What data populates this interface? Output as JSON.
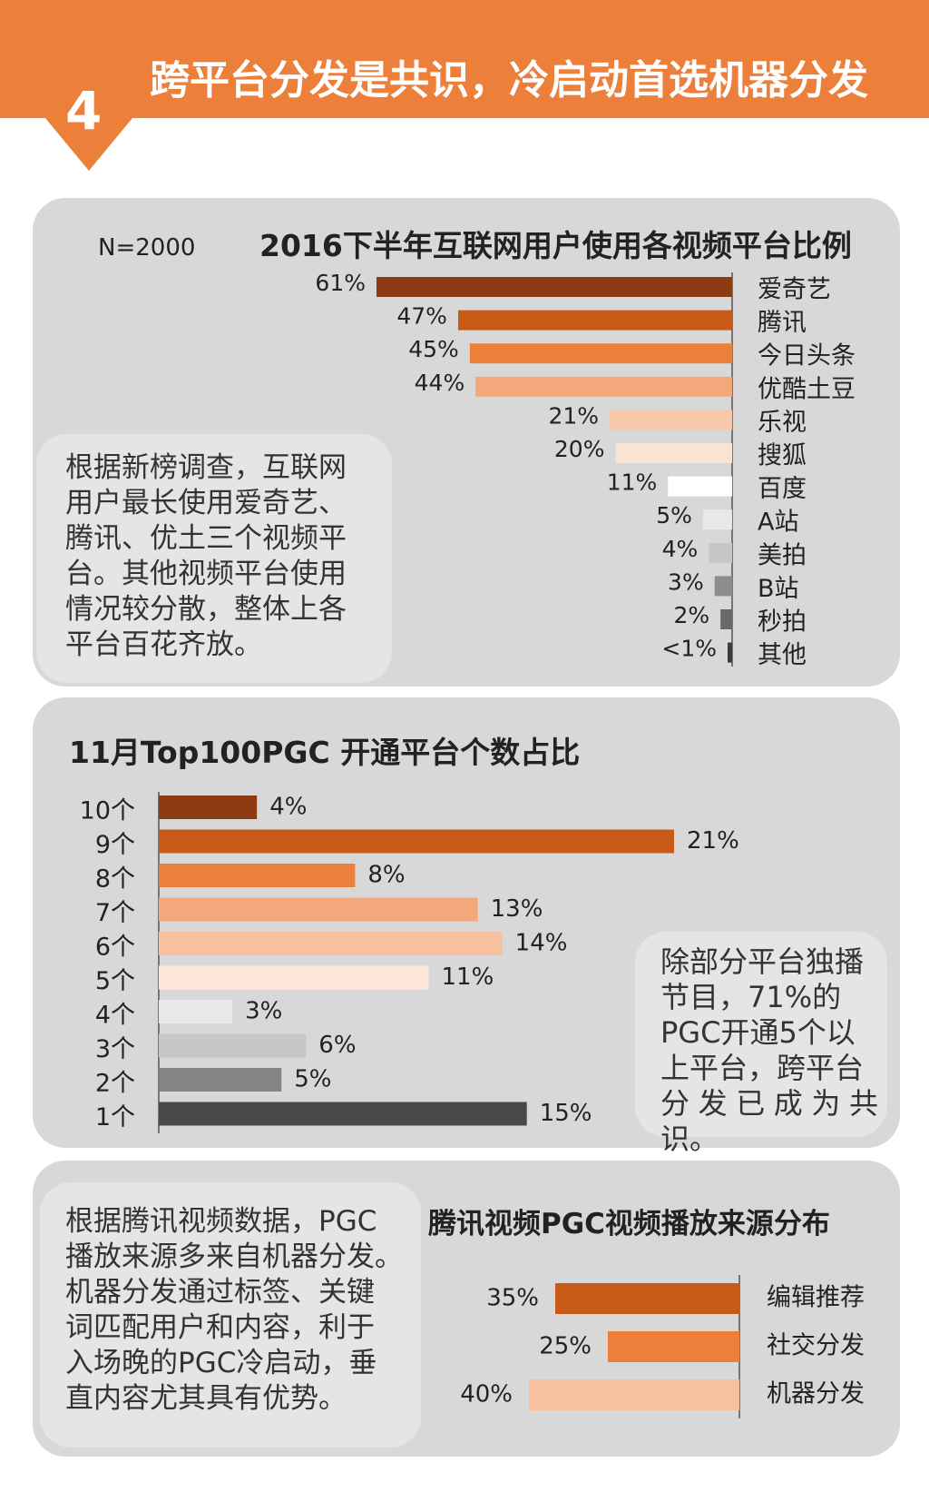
{
  "header": {
    "number": "4",
    "title": "跨平台分发是共识，冷启动首选机器分发"
  },
  "colors": {
    "orange": "#ec7f3a",
    "panel": "#d9d8d8",
    "note": "#e6e5e5"
  },
  "chart_data": [
    {
      "type": "bar",
      "title": "2016下半年互联网用户使用各视频平台比例",
      "sample": "N=2000",
      "categories": [
        "爱奇艺",
        "腾讯",
        "今日头条",
        "优酷土豆",
        "乐视",
        "搜狐",
        "百度",
        "A站",
        "美拍",
        "B站",
        "秒拍",
        "其他"
      ],
      "values": [
        61,
        47,
        45,
        44,
        21,
        20,
        11,
        5,
        4,
        3,
        2,
        0.7
      ],
      "value_labels": [
        "61%",
        "47%",
        "45%",
        "44%",
        "21%",
        "20%",
        "11%",
        "5%",
        "4%",
        "3%",
        "2%",
        "<1%"
      ],
      "colors": [
        "#8c3b12",
        "#c85a18",
        "#ec7f3a",
        "#f3a87c",
        "#f7c9aa",
        "#fbe3d4",
        "#ffffff",
        "#e8e8e8",
        "#c8c6c6",
        "#8e8c8c",
        "#6a6868",
        "#3d3b3b"
      ],
      "note": [
        "根据新榜调查，互联网",
        "用户最长使用爱奇艺、",
        "腾讯、优土三个视频平",
        "台。其他视频平台使用",
        "情况较分散，整体上各",
        "平台百花齐放。"
      ]
    },
    {
      "type": "bar",
      "title": "11月Top100PGC 开通平台个数占比",
      "categories": [
        "10个",
        "9个",
        "8个",
        "7个",
        "6个",
        "5个",
        "4个",
        "3个",
        "2个",
        "1个"
      ],
      "values": [
        4,
        21,
        8,
        13,
        14,
        11,
        3,
        6,
        5,
        15
      ],
      "value_labels": [
        "4%",
        "21%",
        "8%",
        "13%",
        "14%",
        "11%",
        "3%",
        "6%",
        "5%",
        "15%"
      ],
      "colors": [
        "#8c3b12",
        "#c85a18",
        "#ec7f3a",
        "#f3a87c",
        "#f7c1a0",
        "#fde7da",
        "#e8e8e8",
        "#c8c6c6",
        "#858383",
        "#4a4848"
      ],
      "note": [
        "除部分平台独播",
        "节目，71%的",
        "PGC开通5个以",
        "上平台，跨平台",
        "分发已成为共识。"
      ]
    },
    {
      "type": "bar",
      "title": "腾讯视频PGC视频播放来源分布",
      "categories": [
        "编辑推荐",
        "社交分发",
        "机器分发"
      ],
      "values": [
        35,
        25,
        40
      ],
      "value_labels": [
        "35%",
        "25%",
        "40%"
      ],
      "colors": [
        "#c85a18",
        "#ec7f3a",
        "#f7c1a0"
      ],
      "note": [
        "根据腾讯视频数据，PGC",
        "播放来源多来自机器分发。",
        "机器分发通过标签、关键",
        "词匹配用户和内容，利于",
        "入场晚的PGC冷启动，垂",
        "直内容尤其具有优势。"
      ]
    }
  ]
}
